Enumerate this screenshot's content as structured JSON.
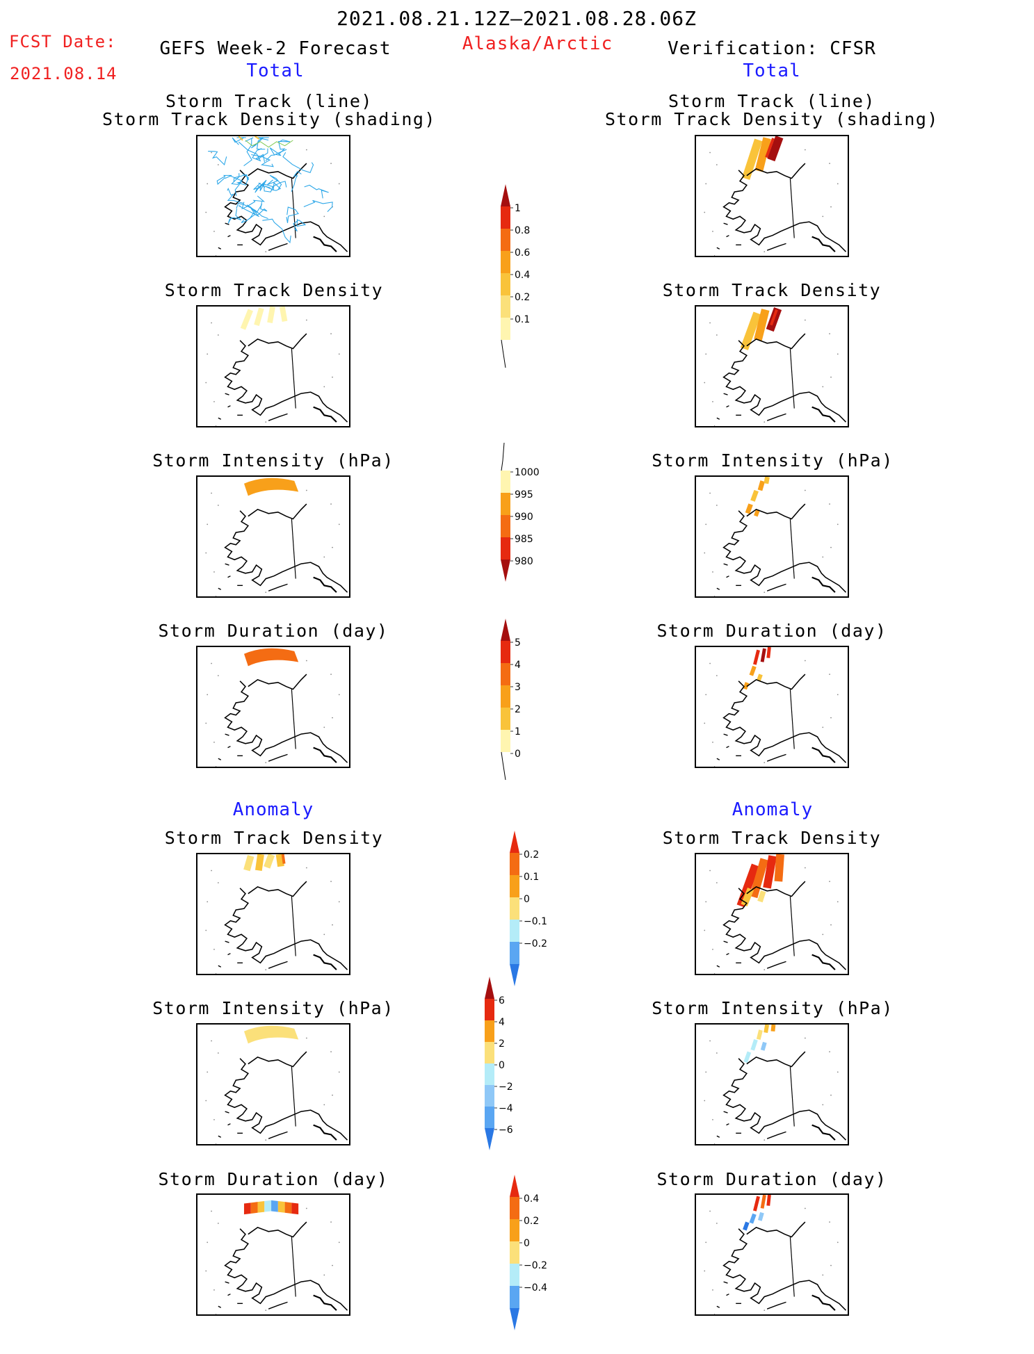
{
  "header": {
    "date_range": "2021.08.21.12Z–2021.08.28.06Z",
    "fcst_label": "FCST Date:",
    "fcst_date": "2021.08.14",
    "left_title": "GEFS Week-2 Forecast",
    "region": "Alaska/Arctic",
    "right_title": "Verification: CFSR"
  },
  "sections": {
    "total": "Total",
    "anomaly": "Anomaly"
  },
  "panel_titles": {
    "track_line": "Storm Track (line)",
    "track_shading": "Storm Track Density (shading)",
    "track_density": "Storm Track Density",
    "intensity": "Storm Intensity (hPa)",
    "duration": "Storm Duration (day)"
  },
  "colorbars": {
    "track_density": {
      "ticks": [
        "1",
        "0.8",
        "0.6",
        "0.4",
        "0.2",
        "0.1"
      ]
    },
    "intensity": {
      "ticks": [
        "1000",
        "995",
        "990",
        "985",
        "980"
      ]
    },
    "duration": {
      "ticks": [
        "5",
        "4",
        "3",
        "2",
        "1",
        "0"
      ]
    },
    "density_anomaly": {
      "ticks": [
        "0.2",
        "0.1",
        "0",
        "−0.1",
        "−0.2"
      ]
    },
    "intensity_anomaly": {
      "ticks": [
        "6",
        "4",
        "2",
        "0",
        "−2",
        "−4",
        "−6"
      ]
    },
    "duration_anomaly": {
      "ticks": [
        "0.4",
        "0.2",
        "0",
        "−0.2",
        "−0.4"
      ]
    }
  },
  "colors": {
    "yellow_light": "#fff5b0",
    "yellow": "#fbe07a",
    "gold": "#f9c33a",
    "orange": "#f8a01a",
    "dark_orange": "#f46c13",
    "red": "#e62a10",
    "dark_red": "#a50f0f",
    "light_blue": "#b4ecf8",
    "blue_1": "#8fc8f7",
    "blue_2": "#5aa6f2",
    "blue_3": "#2a78e4",
    "track_line": "#2aa6e8"
  }
}
